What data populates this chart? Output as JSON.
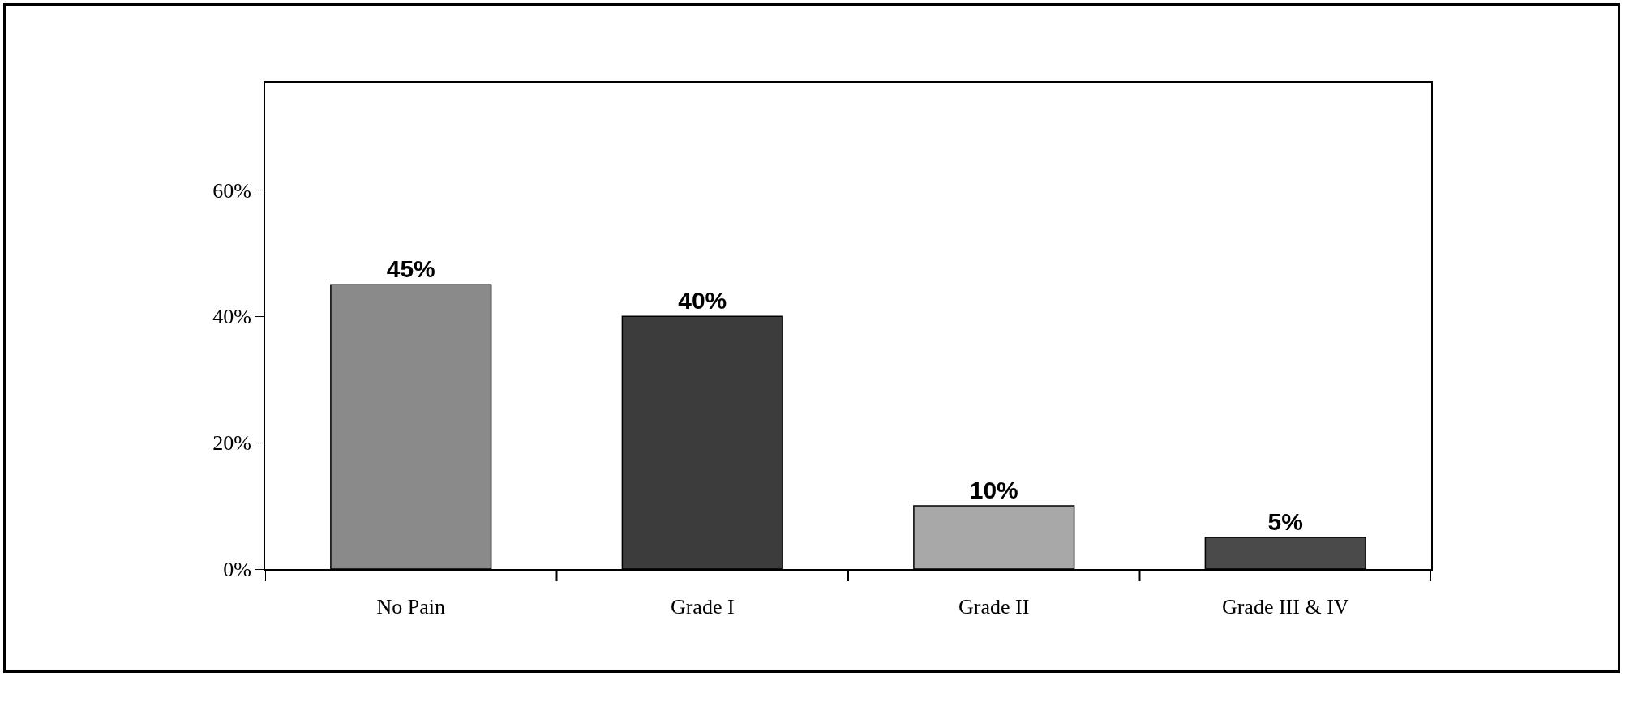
{
  "chart_data": {
    "type": "bar",
    "categories": [
      "No Pain",
      "Grade I",
      "Grade II",
      "Grade III & IV"
    ],
    "values": [
      45,
      40,
      10,
      5
    ],
    "colors": [
      "#8a8a8a",
      "#3c3c3c",
      "#a8a8a8",
      "#4a4a4a"
    ],
    "ylim": [
      0,
      77
    ],
    "yticks": [
      {
        "value": 0,
        "label": "0%"
      },
      {
        "value": 20,
        "label": "20%"
      },
      {
        "value": 40,
        "label": "40%"
      },
      {
        "value": 60,
        "label": "60%"
      }
    ],
    "value_labels": [
      "45%",
      "40%",
      "10%",
      "5%"
    ],
    "grid": false
  }
}
